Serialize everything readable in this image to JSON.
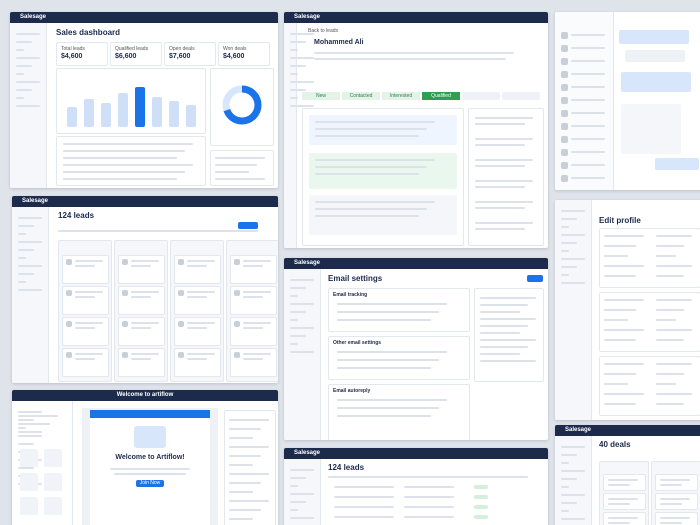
{
  "dashboard": {
    "brand": "Salesage",
    "title": "Sales dashboard",
    "kpis": [
      {
        "label": "Total leads",
        "value": "$4,600"
      },
      {
        "label": "Qualified leads",
        "value": "$6,600"
      },
      {
        "label": "Open deals",
        "value": "$7,600"
      },
      {
        "label": "Won deals",
        "value": "$4,600"
      }
    ]
  },
  "lead_detail": {
    "brand": "Salesage",
    "back": "Back to leads",
    "name": "Mohammed Ali",
    "stages": [
      "New",
      "Contacted",
      "Interested",
      "Qualified"
    ]
  },
  "leads_board": {
    "brand": "Salesage",
    "title": "124 leads"
  },
  "email_settings": {
    "brand": "Salesage",
    "title": "Email settings",
    "sections": [
      "Email tracking",
      "Other email settings",
      "Email autoreply"
    ]
  },
  "edit_profile": {
    "title": "Edit profile"
  },
  "welcome": {
    "header": "Welcome to artiflow",
    "title": "Welcome to Artiflow!",
    "button": "Join Now"
  },
  "leads_table": {
    "brand": "Salesage",
    "title": "124 leads"
  },
  "deals": {
    "brand": "Salesage",
    "title": "40 deals"
  }
}
